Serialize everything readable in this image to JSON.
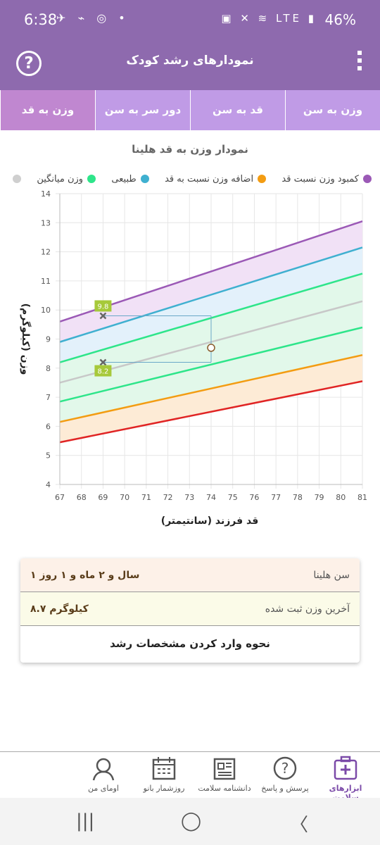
{
  "status": {
    "time": "6:38",
    "battery": "46%",
    "network": "LTE"
  },
  "header": {
    "title": "نمودارهای رشد کودک",
    "help_icon": "help-circle-icon",
    "menu_icon": "more-vertical-icon"
  },
  "tabs": [
    {
      "label": "وزن به سن",
      "active": false
    },
    {
      "label": "قد به سن",
      "active": false
    },
    {
      "label": "دور سر به سن",
      "active": false
    },
    {
      "label": "وزن به قد",
      "active": true
    }
  ],
  "chart_title": "نمودار وزن به قد هلینا",
  "legend": [
    {
      "label": "کمبود وزن نسبت قد",
      "color": "#9b59b6"
    },
    {
      "label": "اضافه وزن نسبت به قد",
      "color": "#f39c12"
    },
    {
      "label": "طبیعی",
      "color": "#3fb0d0"
    },
    {
      "label": "وزن میانگین",
      "color": "#2ee58a"
    },
    {
      "label": "",
      "color": "#cfcfcf"
    }
  ],
  "chart_data": {
    "type": "line",
    "xlabel": "قد فرزند (سانتیمتر)",
    "ylabel": "وزن (کیلوگرم)",
    "xlim": [
      67,
      81
    ],
    "ylim": [
      4,
      14
    ],
    "x_ticks": [
      67,
      68,
      69,
      70,
      71,
      72,
      73,
      74,
      75,
      76,
      77,
      78,
      79,
      80,
      81
    ],
    "y_ticks": [
      4,
      5,
      6,
      7,
      8,
      9,
      10,
      11,
      12,
      13,
      14
    ],
    "series": [
      {
        "color": "#9b59b6",
        "fill": "#f1e1f6",
        "x": [
          67,
          81
        ],
        "y": [
          9.6,
          13.05
        ]
      },
      {
        "color": "#3fb0d0",
        "fill": "#e3f1fb",
        "x": [
          67,
          81
        ],
        "y": [
          8.9,
          12.15
        ]
      },
      {
        "color": "#2ee58a",
        "fill": "#e2f8ea",
        "x": [
          67,
          81
        ],
        "y": [
          8.2,
          11.25
        ]
      },
      {
        "color": "#c8c8c8",
        "fill": "#e2f8ea",
        "x": [
          67,
          81
        ],
        "y": [
          7.5,
          10.3
        ]
      },
      {
        "color": "#2ee58a",
        "fill": "#e2f8ea",
        "x": [
          67,
          81
        ],
        "y": [
          6.85,
          9.4
        ]
      },
      {
        "color": "#f39c12",
        "fill": "#fdebd6",
        "x": [
          67,
          81
        ],
        "y": [
          6.15,
          8.45
        ]
      },
      {
        "color": "#e02424",
        "fill": "#fbd3d3",
        "x": [
          67,
          81
        ],
        "y": [
          5.45,
          7.55
        ]
      }
    ],
    "markers": [
      {
        "x": 69,
        "y": 9.8,
        "label": "9.8"
      },
      {
        "x": 69,
        "y": 8.2,
        "label": "8.2"
      }
    ],
    "current_point": {
      "x": 74,
      "y": 8.7
    }
  },
  "info": {
    "age_label": "سن هلینا",
    "age_value": "۱ سال و ۲ ماه و ۱ روز",
    "weight_label": "آخرین وزن ثبت شده",
    "weight_value": "۸.۷ کیلوگرم",
    "link": "نحوه وارد کردن مشخصات رشد"
  },
  "bottom_nav": [
    {
      "label": "ابزارهای سلامت",
      "icon": "medical-kit-icon",
      "active": true
    },
    {
      "label": "پرسش و پاسخ",
      "icon": "question-icon",
      "active": false
    },
    {
      "label": "دانشنامه سلامت",
      "icon": "newspaper-icon",
      "active": false
    },
    {
      "label": "روزشمار بانو",
      "icon": "calendar-icon",
      "active": false
    },
    {
      "label": "اومای من",
      "icon": "user-avatar-icon",
      "active": false
    }
  ]
}
